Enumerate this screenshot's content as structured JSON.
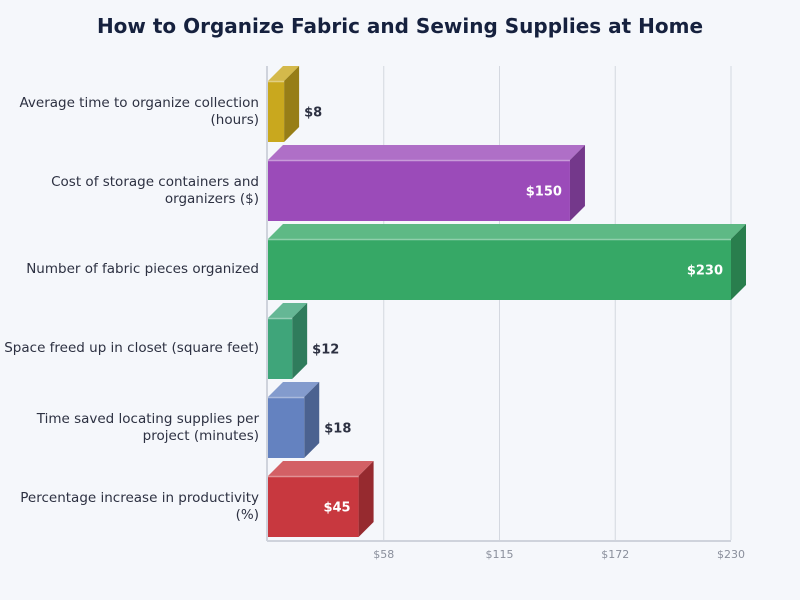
{
  "title": "How to Organize Fabric and Sewing Supplies at Home",
  "chart_data": {
    "type": "bar",
    "orientation": "horizontal",
    "style": "3d",
    "title": "How to Organize Fabric and Sewing Supplies at Home",
    "xlabel": "",
    "ylabel": "",
    "xlim": [
      0,
      230
    ],
    "x_ticks": [
      "$58",
      "$115",
      "$172",
      "$230"
    ],
    "x_tick_values": [
      57.5,
      115,
      172.5,
      230
    ],
    "grid": true,
    "legend": null,
    "categories": [
      "Average time to organize collection (hours)",
      "Cost of storage containers and organizers ($)",
      "Number of fabric pieces organized",
      "Space freed up in closet (square feet)",
      "Time saved locating supplies per project (minutes)",
      "Percentage increase in productivity (%)"
    ],
    "values": [
      8,
      150,
      230,
      12,
      18,
      45
    ],
    "labels": [
      "$8",
      "$150",
      "$230",
      "$12",
      "$18",
      "$45"
    ],
    "colors": [
      "#c9a81e",
      "#9b4bb9",
      "#36a866",
      "#3fa57a",
      "#6482c0",
      "#c8383f"
    ]
  },
  "category_lines": [
    [
      "Average time to organize collection",
      "(hours)"
    ],
    [
      "Cost of storage containers and",
      "organizers ($)"
    ],
    [
      "Number of fabric pieces organized"
    ],
    [
      "Space freed up in closet (square feet)"
    ],
    [
      "Time saved locating supplies per",
      "project (minutes)"
    ],
    [
      "Percentage increase in productivity",
      "(%)"
    ]
  ]
}
